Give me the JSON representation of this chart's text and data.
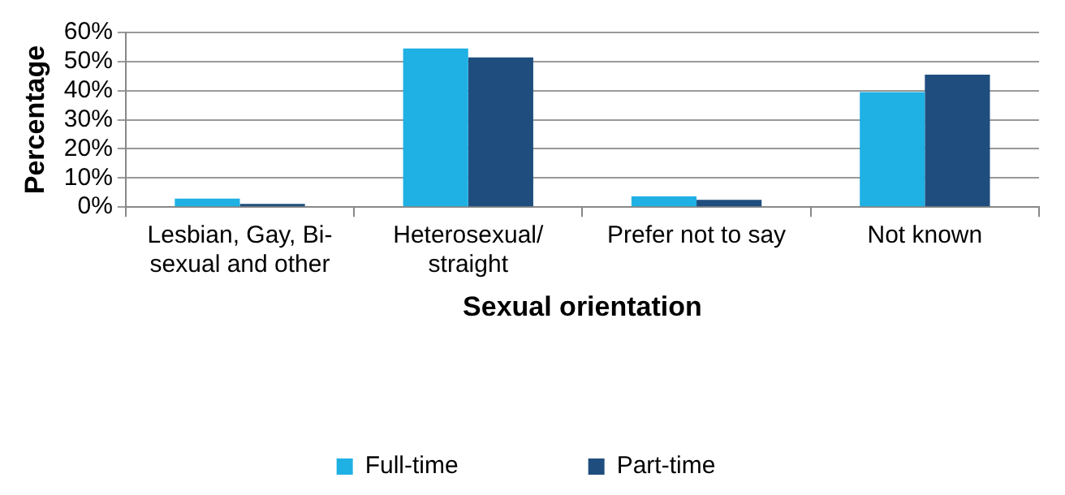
{
  "chart_data": {
    "type": "bar",
    "xlabel": "Sexual orientation",
    "ylabel": "Percentage",
    "categories": [
      "Lesbian, Gay, Bi-sexual and other",
      "Heterosexual/ straight",
      "Prefer not to say",
      "Not known"
    ],
    "series": [
      {
        "name": "Full-time",
        "color": "#1fb0e4",
        "values": [
          2.9,
          54.5,
          3.7,
          39.5
        ]
      },
      {
        "name": "Part-time",
        "color": "#1f4e7e",
        "values": [
          1.1,
          51.4,
          2.5,
          45.5
        ]
      }
    ],
    "ylim": [
      0,
      60
    ],
    "yticks": [
      {
        "value": 0,
        "label": "0%"
      },
      {
        "value": 10,
        "label": "10%"
      },
      {
        "value": 20,
        "label": "20%"
      },
      {
        "value": 30,
        "label": "30%"
      },
      {
        "value": 40,
        "label": "40%"
      },
      {
        "value": 50,
        "label": "50%"
      },
      {
        "value": 60,
        "label": "60%"
      }
    ],
    "grid": "y",
    "legend": "bottom"
  }
}
